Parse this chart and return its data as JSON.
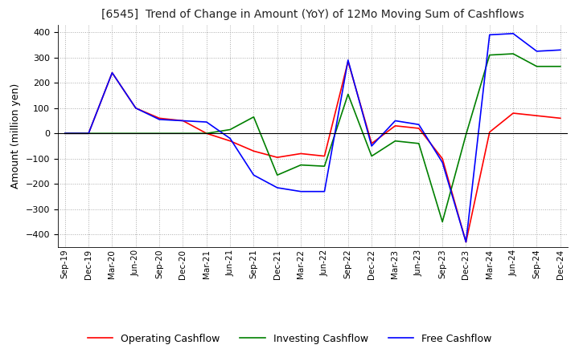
{
  "title": "[6545]  Trend of Change in Amount (YoY) of 12Mo Moving Sum of Cashflows",
  "ylabel": "Amount (million yen)",
  "ylim": [
    -450,
    430
  ],
  "yticks": [
    -400,
    -300,
    -200,
    -100,
    0,
    100,
    200,
    300,
    400
  ],
  "x_labels": [
    "Sep-19",
    "Dec-19",
    "Mar-20",
    "Jun-20",
    "Sep-20",
    "Dec-20",
    "Mar-21",
    "Jun-21",
    "Sep-21",
    "Dec-21",
    "Mar-22",
    "Jun-22",
    "Sep-22",
    "Dec-22",
    "Mar-23",
    "Jun-23",
    "Sep-23",
    "Dec-23",
    "Mar-24",
    "Jun-24",
    "Sep-24",
    "Dec-24"
  ],
  "operating": [
    0,
    0,
    240,
    100,
    60,
    50,
    0,
    -30,
    -70,
    -95,
    -80,
    -90,
    285,
    -40,
    30,
    20,
    -100,
    -430,
    5,
    80,
    70,
    60
  ],
  "investing": [
    0,
    0,
    0,
    0,
    0,
    0,
    0,
    15,
    65,
    -165,
    -125,
    -130,
    155,
    -90,
    -30,
    -40,
    -350,
    -5,
    310,
    315,
    265,
    265
  ],
  "free": [
    0,
    0,
    240,
    100,
    55,
    50,
    45,
    -20,
    -165,
    -215,
    -230,
    -230,
    290,
    -50,
    50,
    35,
    -115,
    -430,
    390,
    395,
    325,
    330
  ],
  "operating_color": "#ff0000",
  "investing_color": "#008000",
  "free_color": "#0000ff",
  "background_color": "#ffffff",
  "grid_color": "#aaaaaa"
}
